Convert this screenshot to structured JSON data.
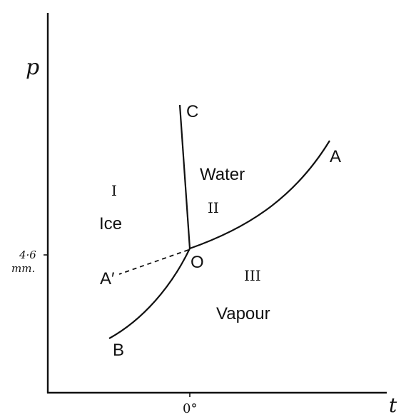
{
  "axes": {
    "y_label": "p",
    "x_label": "t",
    "y_tick_value": "4·6",
    "y_tick_unit": "mm.",
    "x_tick": "0°"
  },
  "curves": {
    "fusion_end": "C",
    "vaporisation_end": "A",
    "sublimation_end": "B",
    "metastable_end": "A′",
    "triple_point": "O"
  },
  "regions": {
    "ice_numeral": "I",
    "ice_name": "Ice",
    "water_numeral": "II",
    "water_name": "Water",
    "vapour_numeral": "III",
    "vapour_name": "Vapour"
  }
}
